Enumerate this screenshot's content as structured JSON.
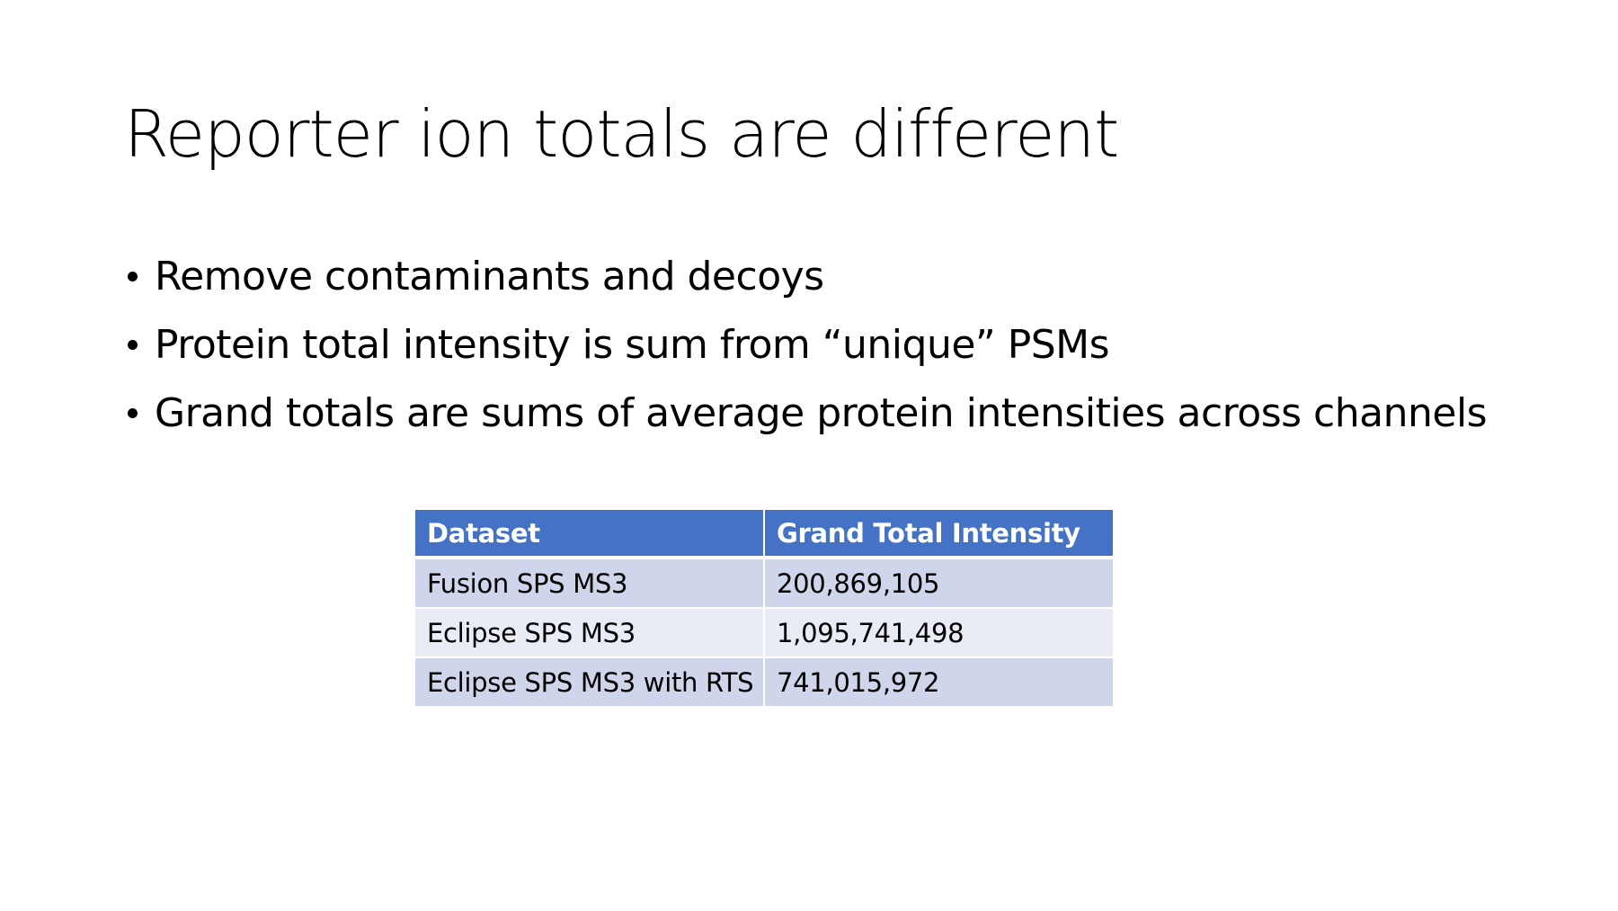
{
  "slide": {
    "title": "Reporter ion totals are different",
    "bullets": [
      "Remove contaminants and decoys",
      "Protein total intensity is sum from “unique” PSMs",
      "Grand totals are sums of average protein intensities across channels"
    ]
  },
  "table": {
    "headers": [
      "Dataset",
      "Grand Total Intensity"
    ],
    "rows": [
      [
        "Fusion SPS MS3",
        "200,869,105"
      ],
      [
        "Eclipse SPS MS3",
        "1,095,741,498"
      ],
      [
        "Eclipse SPS MS3 with RTS",
        "741,015,972"
      ]
    ]
  },
  "colors": {
    "header_bg": "#4472c4",
    "row_odd_bg": "#cfd5ea",
    "row_even_bg": "#e9ebf5"
  }
}
